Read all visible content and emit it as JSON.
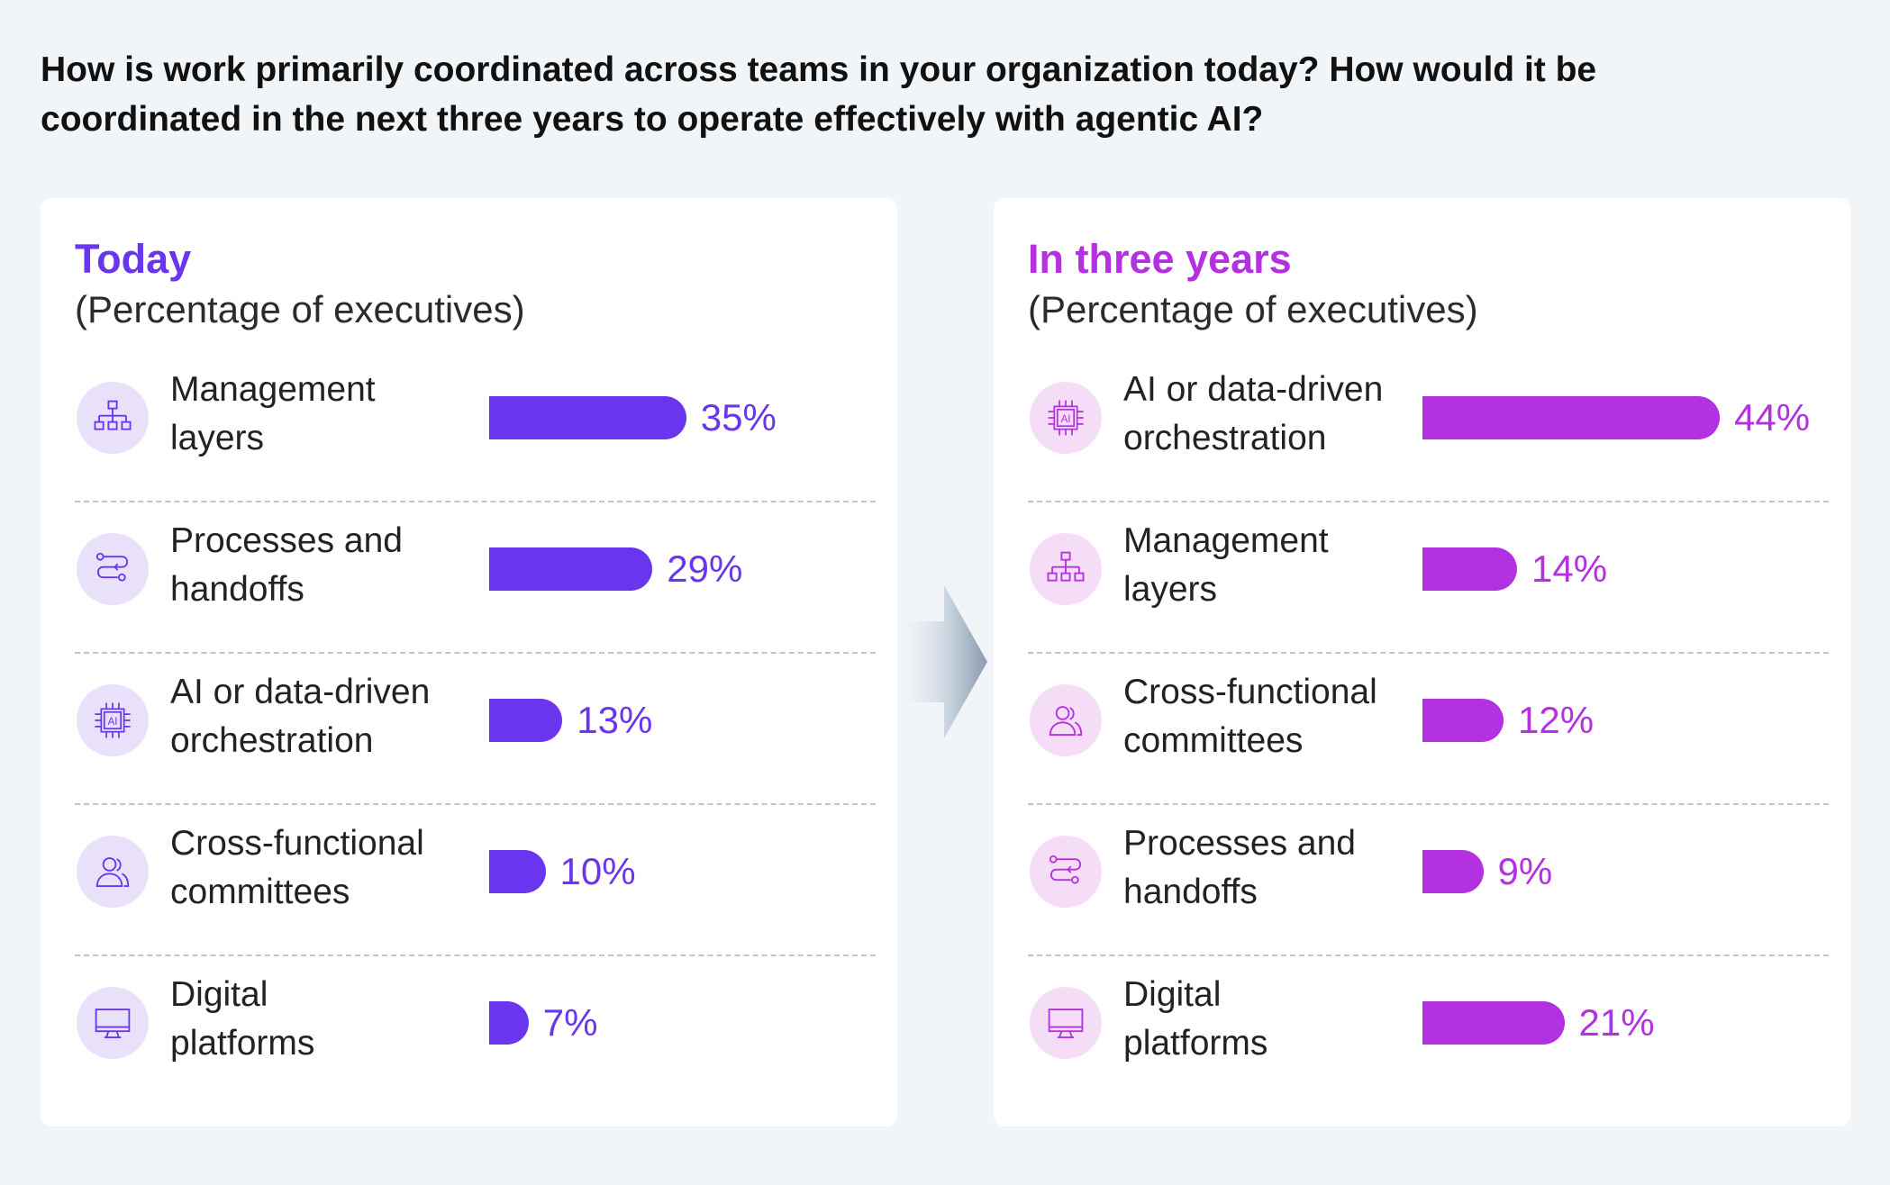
{
  "question": "How is work primarily coordinated across teams in your organization today? How would it be coordinated in the next three years to operate effectively with agentic AI?",
  "colors": {
    "today_accent": "#6a35ee",
    "today_icon_bg": "#e8e1f9",
    "future_accent": "#b331e0",
    "future_icon_bg": "#f5ddf7"
  },
  "chart_data": [
    {
      "type": "bar",
      "orientation": "horizontal",
      "title": "Today",
      "subtitle": "(Percentage of executives)",
      "categories": [
        "Management layers",
        "Processes and handoffs",
        "AI or data-driven orchestration",
        "Cross-functional committees",
        "Digital platforms"
      ],
      "category_lines": [
        [
          "Management",
          "layers"
        ],
        [
          "Processes and",
          "handoffs"
        ],
        [
          "AI or data-driven",
          "orchestration"
        ],
        [
          "Cross-functional",
          "committees"
        ],
        [
          "Digital",
          "platforms"
        ]
      ],
      "icons": [
        "org-chart-icon",
        "workflow-icon",
        "ai-chip-icon",
        "people-icon",
        "monitor-icon"
      ],
      "values": [
        35,
        29,
        13,
        10,
        7
      ],
      "value_labels": [
        "35%",
        "29%",
        "13%",
        "10%",
        "7%"
      ],
      "unit": "%"
    },
    {
      "type": "bar",
      "orientation": "horizontal",
      "title": "In three years",
      "subtitle": "(Percentage of executives)",
      "categories": [
        "AI or data-driven orchestration",
        "Management layers",
        "Cross-functional committees",
        "Processes and handoffs",
        "Digital platforms"
      ],
      "category_lines": [
        [
          "AI or data-driven",
          "orchestration"
        ],
        [
          "Management",
          "layers"
        ],
        [
          "Cross-functional",
          "committees"
        ],
        [
          "Processes and",
          "handoffs"
        ],
        [
          "Digital",
          "platforms"
        ]
      ],
      "icons": [
        "ai-chip-icon",
        "org-chart-icon",
        "people-icon",
        "workflow-icon",
        "monitor-icon"
      ],
      "values": [
        44,
        14,
        12,
        9,
        21
      ],
      "value_labels": [
        "44%",
        "14%",
        "12%",
        "9%",
        "21%"
      ],
      "unit": "%"
    }
  ]
}
